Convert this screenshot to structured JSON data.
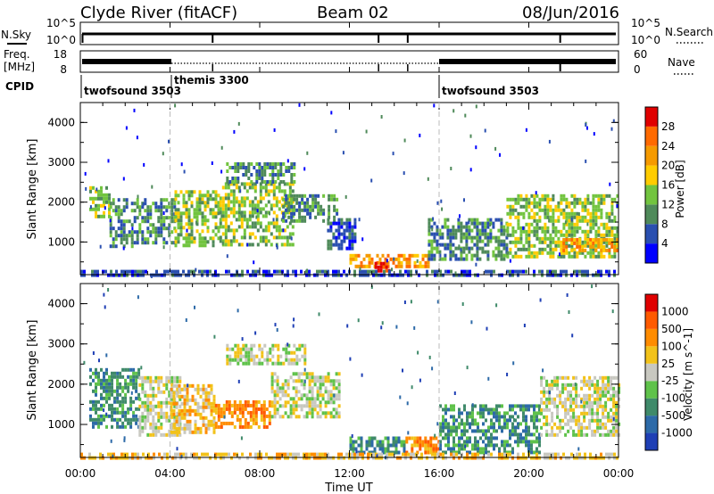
{
  "header": {
    "station": "Clyde River (fitACF)",
    "beam": "Beam 02",
    "date": "08/Jun/2016"
  },
  "panels": {
    "noise": {
      "left_label": "N.Sky",
      "right_label": "N.Search",
      "left_ticks": [
        "10^5",
        "10^0"
      ],
      "right_ticks": [
        "10^5",
        "10^0"
      ]
    },
    "freq": {
      "left_label_top": "Freq.",
      "left_label_bottom": "[MHz]",
      "right_label": "Nave",
      "left_ticks": [
        "18",
        "8"
      ],
      "right_ticks": [
        "60",
        "0"
      ]
    },
    "cpid": {
      "label": "CPID",
      "segments": [
        {
          "name": "twofsound 3503",
          "start_hour": 0.0,
          "end_hour": 4.0
        },
        {
          "name": "themis 3300",
          "start_hour": 4.0,
          "end_hour": 16.0
        },
        {
          "name": "twofsound 3503",
          "start_hour": 16.0,
          "end_hour": 24.0
        }
      ]
    }
  },
  "chart_data": [
    {
      "type": "heatmap",
      "title": "",
      "parameter": "Power",
      "ylabel": "Slant Range [km]",
      "xlabel": "",
      "xlim": [
        0,
        24
      ],
      "ylim": [
        180,
        4500
      ],
      "y_ticks": [
        1000,
        2000,
        3000,
        4000
      ],
      "colorbar": {
        "label": "Power [dB]",
        "ticks": [
          "4",
          "8",
          "12",
          "16",
          "20",
          "24",
          "28"
        ],
        "colors": [
          "#0000ff",
          "#2a4fb0",
          "#4f8a5a",
          "#72c43f",
          "#ffcc00",
          "#f59a00",
          "#ff6a00",
          "#e00000"
        ]
      },
      "echo_regions": [
        {
          "t0": 0.4,
          "t1": 1.3,
          "r0": 1600,
          "r1": 2400,
          "level": 3
        },
        {
          "t0": 1.3,
          "t1": 2.6,
          "r0": 900,
          "r1": 2100,
          "level": 2
        },
        {
          "t0": 2.6,
          "t1": 4.2,
          "r0": 1000,
          "r1": 2100,
          "level": 2
        },
        {
          "t0": 4.2,
          "t1": 6.2,
          "r0": 900,
          "r1": 2300,
          "level": 3
        },
        {
          "t0": 6.2,
          "t1": 9.5,
          "r0": 900,
          "r1": 2500,
          "level": 3
        },
        {
          "t0": 6.5,
          "t1": 9.5,
          "r0": 2500,
          "r1": 3000,
          "level": 2
        },
        {
          "t0": 9.0,
          "t1": 11.5,
          "r0": 1500,
          "r1": 2200,
          "level": 2
        },
        {
          "t0": 11.0,
          "t1": 12.2,
          "r0": 800,
          "r1": 1600,
          "level": 1
        },
        {
          "t0": 12.0,
          "t1": 15.5,
          "r0": 400,
          "r1": 700,
          "level": 5
        },
        {
          "t0": 13.0,
          "t1": 13.8,
          "r0": 250,
          "r1": 500,
          "level": 7
        },
        {
          "t0": 15.5,
          "t1": 19.0,
          "r0": 600,
          "r1": 1600,
          "level": 2
        },
        {
          "t0": 19.0,
          "t1": 24.0,
          "r0": 600,
          "r1": 2200,
          "level": 3
        },
        {
          "t0": 21.5,
          "t1": 24.0,
          "r0": 800,
          "r1": 1100,
          "level": 5
        },
        {
          "t0": 0.0,
          "t1": 24.0,
          "r0": 180,
          "r1": 300,
          "level": 1
        }
      ]
    },
    {
      "type": "heatmap",
      "title": "",
      "parameter": "Velocity",
      "ylabel": "Slant Range [km]",
      "xlabel": "Time UT",
      "xlim": [
        0,
        24
      ],
      "ylim": [
        180,
        4500
      ],
      "y_ticks": [
        1000,
        2000,
        3000,
        4000
      ],
      "x_ticks": [
        "00:00",
        "04:00",
        "08:00",
        "12:00",
        "16:00",
        "20:00",
        "00:00"
      ],
      "colorbar": {
        "label": "Velocity [m s^-1]",
        "ticks": [
          "1000",
          "500",
          "100",
          "25",
          "-25",
          "-100",
          "-500",
          "-1000"
        ],
        "colors": [
          "#1f3fb5",
          "#2d6aa8",
          "#3f8a6a",
          "#5fc24a",
          "#c8c8c0",
          "#f2c21a",
          "#ff8c00",
          "#ff5a00",
          "#e00000"
        ]
      },
      "echo_regions": [
        {
          "t0": 0.4,
          "t1": 2.6,
          "r0": 900,
          "r1": 2400,
          "level": 2
        },
        {
          "t0": 2.6,
          "t1": 4.5,
          "r0": 700,
          "r1": 2200,
          "level": 4
        },
        {
          "t0": 4.0,
          "t1": 6.0,
          "r0": 800,
          "r1": 2000,
          "level": 5
        },
        {
          "t0": 6.0,
          "t1": 8.5,
          "r0": 900,
          "r1": 1600,
          "level": 6
        },
        {
          "t0": 8.5,
          "t1": 11.5,
          "r0": 1200,
          "r1": 2300,
          "level": 4
        },
        {
          "t0": 6.5,
          "t1": 10.0,
          "r0": 2500,
          "r1": 3000,
          "level": 4
        },
        {
          "t0": 12.0,
          "t1": 14.5,
          "r0": 300,
          "r1": 700,
          "level": 2
        },
        {
          "t0": 14.5,
          "t1": 16.0,
          "r0": 300,
          "r1": 700,
          "level": 6
        },
        {
          "t0": 16.0,
          "t1": 20.5,
          "r0": 300,
          "r1": 1500,
          "level": 2
        },
        {
          "t0": 20.5,
          "t1": 24.0,
          "r0": 700,
          "r1": 2200,
          "level": 4
        },
        {
          "t0": 0.0,
          "t1": 24.0,
          "r0": 180,
          "r1": 300,
          "level": 5
        }
      ]
    }
  ]
}
